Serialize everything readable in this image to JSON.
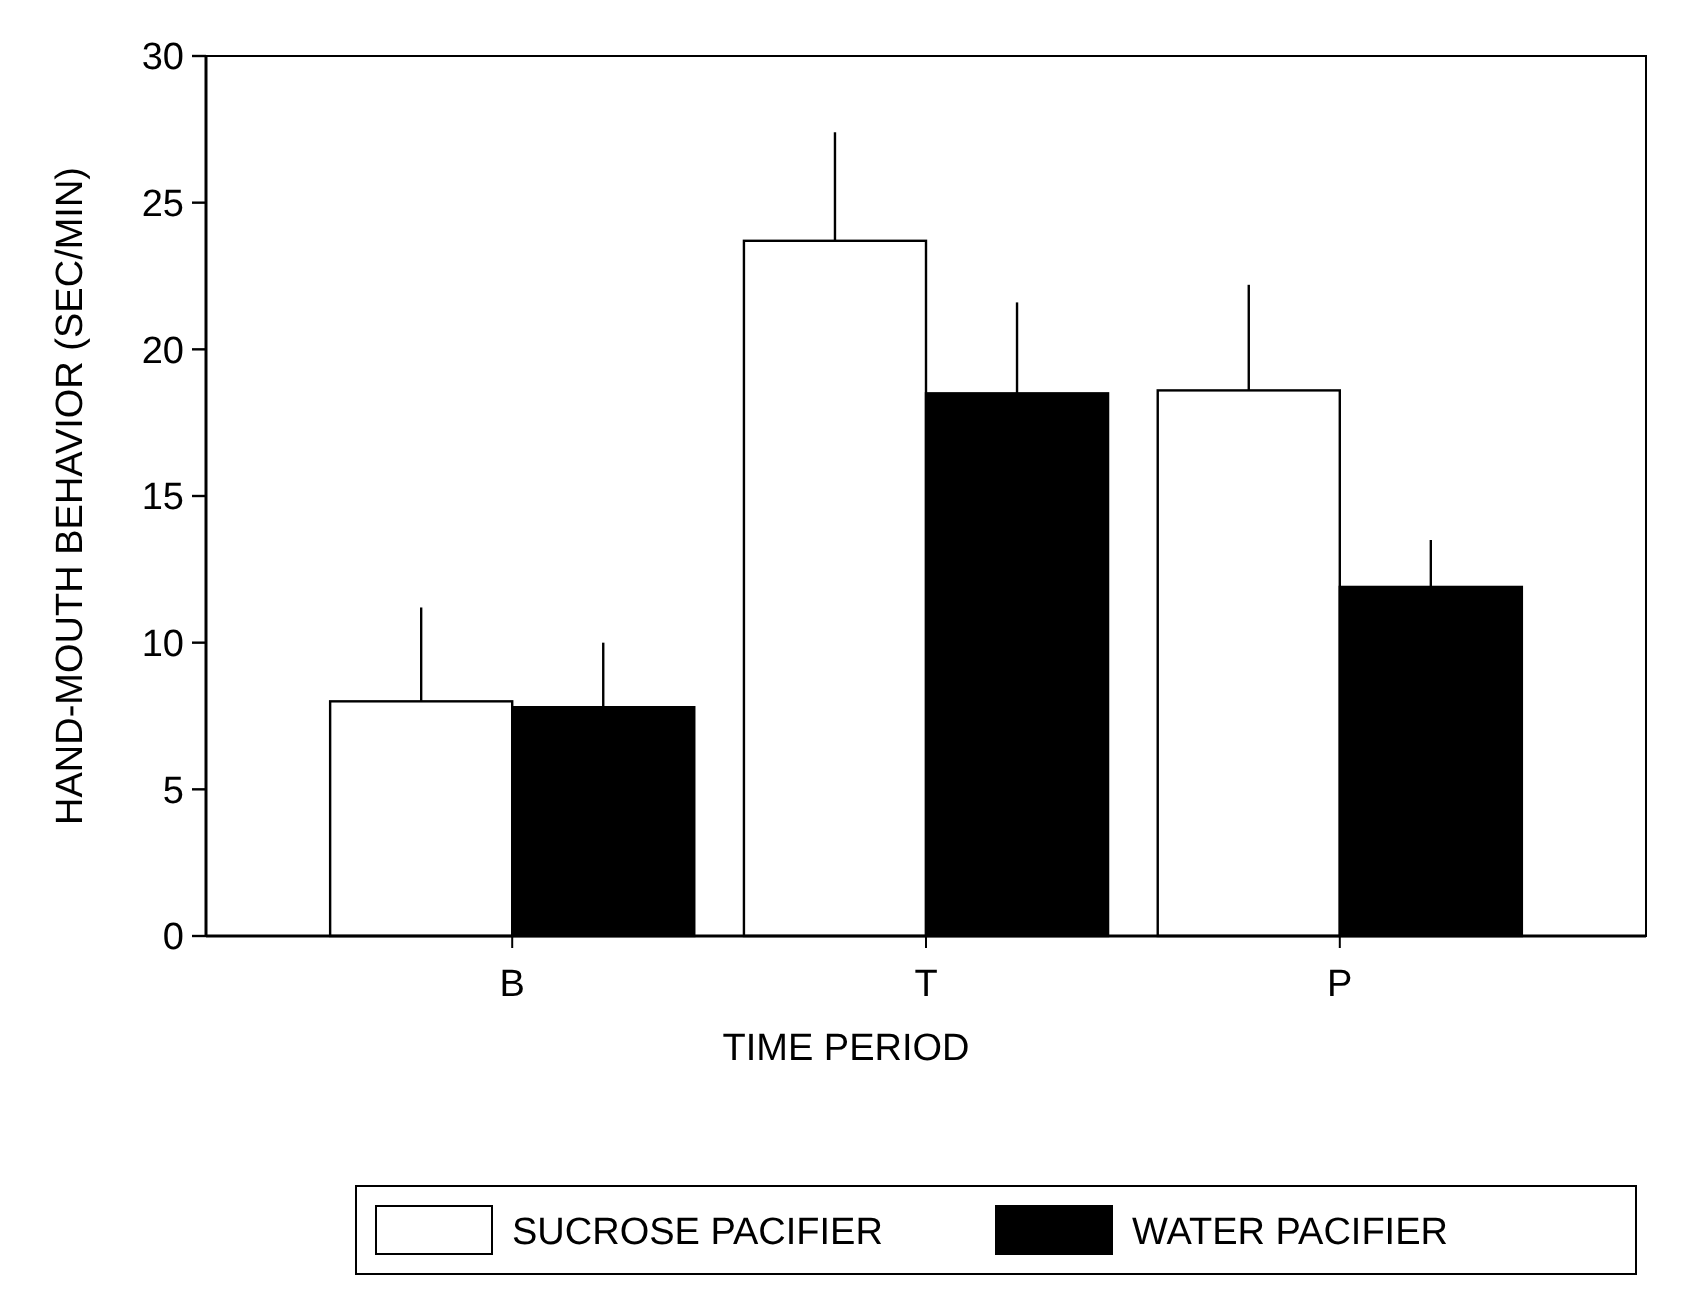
{
  "chart_data": {
    "type": "bar",
    "xlabel": "TIME PERIOD",
    "ylabel": "HAND-MOUTH BEHAVIOR (SEC/MIN)",
    "categories": [
      "B",
      "T",
      "P"
    ],
    "series": [
      {
        "name": "SUCROSE PACIFIER",
        "color": "#ffffff",
        "values": [
          8.0,
          23.7,
          18.6
        ],
        "errors": [
          [
            8.0,
            11.2
          ],
          [
            23.7,
            27.4
          ],
          [
            18.6,
            22.2
          ]
        ]
      },
      {
        "name": "WATER PACIFIER",
        "color": "#000000",
        "values": [
          7.8,
          18.5,
          11.9
        ],
        "errors": [
          [
            7.8,
            10.0
          ],
          [
            18.5,
            21.6
          ],
          [
            11.9,
            13.5
          ]
        ]
      }
    ],
    "ylim": [
      0,
      30
    ],
    "yticks": [
      0,
      5,
      10,
      15,
      20,
      25,
      30
    ],
    "grid": false,
    "legend": "bottom"
  }
}
